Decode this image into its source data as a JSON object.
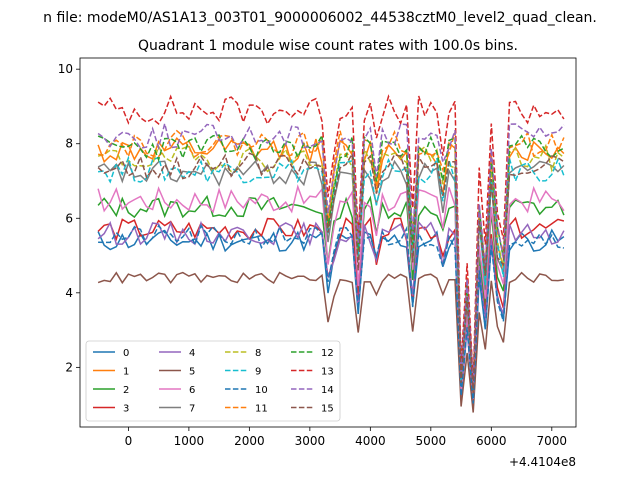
{
  "figure": {
    "suptitle": "n file: modeM0/AS1A13_003T01_9000006002_44538cztM0_level2_quad_clean.",
    "offset_text": "+4.4104e8"
  },
  "chart_data": {
    "type": "line",
    "title": "Quadrant 1 module wise count rates with 100.0s bins.",
    "xlabel": "",
    "ylabel": "",
    "x_offset": 441040000,
    "xlim": [
      -800,
      7400
    ],
    "ylim": [
      0.4,
      10.3
    ],
    "xticks": [
      0,
      1000,
      2000,
      3000,
      4000,
      5000,
      6000,
      7000
    ],
    "yticks": [
      2,
      4,
      6,
      8,
      10
    ],
    "grid": false,
    "legend_position": "lower-left",
    "legend_columns": 4,
    "x_start": -500,
    "x_end": 7200,
    "x_step": 100,
    "series": [
      {
        "name": "0",
        "color": "#1f77b4",
        "dash": "solid",
        "base": 5.4,
        "amp": 0.3,
        "seed": 11
      },
      {
        "name": "1",
        "color": "#ff7f0e",
        "dash": "solid",
        "base": 7.8,
        "amp": 0.35,
        "seed": 12
      },
      {
        "name": "2",
        "color": "#2ca02c",
        "dash": "solid",
        "base": 6.3,
        "amp": 0.3,
        "seed": 13
      },
      {
        "name": "3",
        "color": "#d62728",
        "dash": "solid",
        "base": 5.7,
        "amp": 0.3,
        "seed": 14
      },
      {
        "name": "4",
        "color": "#9467bd",
        "dash": "solid",
        "base": 5.6,
        "amp": 0.3,
        "seed": 15
      },
      {
        "name": "5",
        "color": "#8c564b",
        "dash": "solid",
        "base": 4.4,
        "amp": 0.15,
        "seed": 16
      },
      {
        "name": "6",
        "color": "#e377c2",
        "dash": "solid",
        "base": 6.5,
        "amp": 0.35,
        "seed": 17
      },
      {
        "name": "7",
        "color": "#7f7f7f",
        "dash": "solid",
        "base": 7.2,
        "amp": 0.35,
        "seed": 18
      },
      {
        "name": "8",
        "color": "#bcbd22",
        "dash": "dashed",
        "base": 7.6,
        "amp": 0.35,
        "seed": 19
      },
      {
        "name": "9",
        "color": "#17becf",
        "dash": "dashed",
        "base": 7.3,
        "amp": 0.35,
        "seed": 20
      },
      {
        "name": "10",
        "color": "#1f77b4",
        "dash": "dashed",
        "base": 5.5,
        "amp": 0.3,
        "seed": 21
      },
      {
        "name": "11",
        "color": "#ff7f0e",
        "dash": "dashed",
        "base": 8.0,
        "amp": 0.35,
        "seed": 22
      },
      {
        "name": "12",
        "color": "#2ca02c",
        "dash": "dashed",
        "base": 7.9,
        "amp": 0.35,
        "seed": 23
      },
      {
        "name": "13",
        "color": "#d62728",
        "dash": "dashed",
        "base": 8.9,
        "amp": 0.4,
        "seed": 24
      },
      {
        "name": "14",
        "color": "#9467bd",
        "dash": "dashed",
        "base": 8.2,
        "amp": 0.35,
        "seed": 25
      },
      {
        "name": "15",
        "color": "#8c564b",
        "dash": "dashed",
        "base": 7.4,
        "amp": 0.35,
        "seed": 26
      }
    ],
    "dips": [
      {
        "x": 3300,
        "factor": 0.75
      },
      {
        "x": 3400,
        "factor": 0.9
      },
      {
        "x": 3800,
        "factor": 0.65
      },
      {
        "x": 4100,
        "factor": 0.88
      },
      {
        "x": 4700,
        "factor": 0.68
      },
      {
        "x": 5200,
        "factor": 0.88
      },
      {
        "x": 5500,
        "factor": 0.22
      },
      {
        "x": 5600,
        "factor": 0.55
      },
      {
        "x": 5700,
        "factor": 0.18
      },
      {
        "x": 5800,
        "factor": 0.8
      },
      {
        "x": 5900,
        "factor": 0.58
      },
      {
        "x": 6100,
        "factor": 0.7
      },
      {
        "x": 6200,
        "factor": 0.62
      }
    ]
  }
}
